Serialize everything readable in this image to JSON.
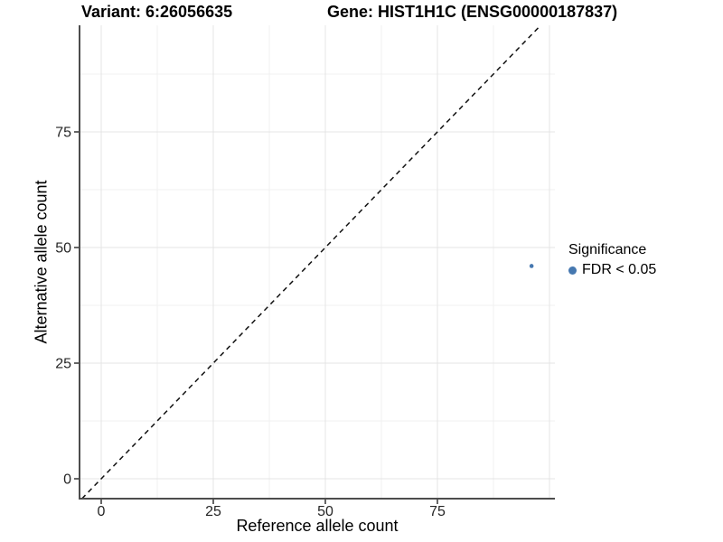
{
  "titles": {
    "variant": "Variant: 6:26056635",
    "gene": "Gene: HIST1H1C (ENSG00000187837)"
  },
  "chart_data": {
    "type": "scatter",
    "xlabel": "Reference allele count",
    "ylabel": "Alternative allele count",
    "x_ticks": [
      0,
      25,
      50,
      75
    ],
    "y_ticks": [
      0,
      25,
      50,
      75
    ],
    "x_grid_major": [
      0,
      25,
      50,
      75,
      100
    ],
    "y_grid_major": [
      0,
      25,
      50,
      75
    ],
    "x_grid_minor": [
      12.5,
      37.5,
      62.5,
      87.5
    ],
    "y_grid_minor": [
      12.5,
      37.5,
      62.5,
      87.5
    ],
    "xlim": [
      -4.8,
      101.2
    ],
    "ylim": [
      -4.3,
      98
    ],
    "grid": "on",
    "points": [
      {
        "x": 96,
        "y": 46,
        "series": "FDR < 0.05"
      }
    ],
    "series": [
      {
        "name": "FDR < 0.05",
        "color": "#4678B0"
      }
    ],
    "diagonal": {
      "slope": 1,
      "intercept": 0,
      "linetype": "dashed",
      "color": "#111111"
    },
    "legend": {
      "title": "Significance",
      "position": "right",
      "items": [
        {
          "label": "FDR < 0.05",
          "color": "#4678B0"
        }
      ]
    }
  },
  "theme": {
    "grid_major_color": "#e4e4e4",
    "grid_minor_color": "#f1f1f1",
    "axis_line_color": "#4d4d4d",
    "tick_mark_color": "#333333",
    "tick_label_color": "#262626",
    "background": "#ffffff"
  }
}
